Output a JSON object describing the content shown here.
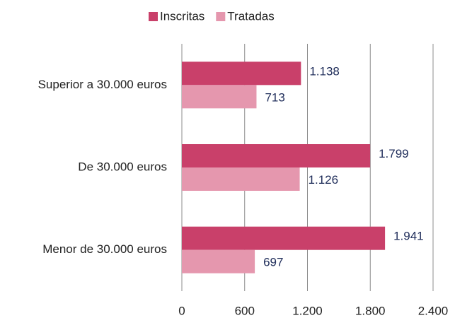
{
  "chart_data": {
    "type": "barh",
    "categories": [
      "Superior a 30.000 euros",
      "De 30.000 euros",
      "Menor de 30.000 euros"
    ],
    "series": [
      {
        "name": "Inscritas",
        "color": "#c9406a",
        "values": [
          1138,
          1799,
          1941
        ],
        "value_labels": [
          "1.138",
          "1.799",
          "1.941"
        ]
      },
      {
        "name": "Tratadas",
        "color": "#e597ae",
        "values": [
          713,
          1126,
          697
        ],
        "value_labels": [
          "713",
          "1.126",
          "697"
        ]
      }
    ],
    "xlim": [
      0,
      2400
    ],
    "xticks": [
      0,
      600,
      {
        "value": 1200,
        "label": "1.200"
      },
      {
        "value": 1800,
        "label": "1.800"
      },
      {
        "value": 2400,
        "label": "2.400"
      }
    ],
    "grid": true,
    "legend": "top"
  }
}
